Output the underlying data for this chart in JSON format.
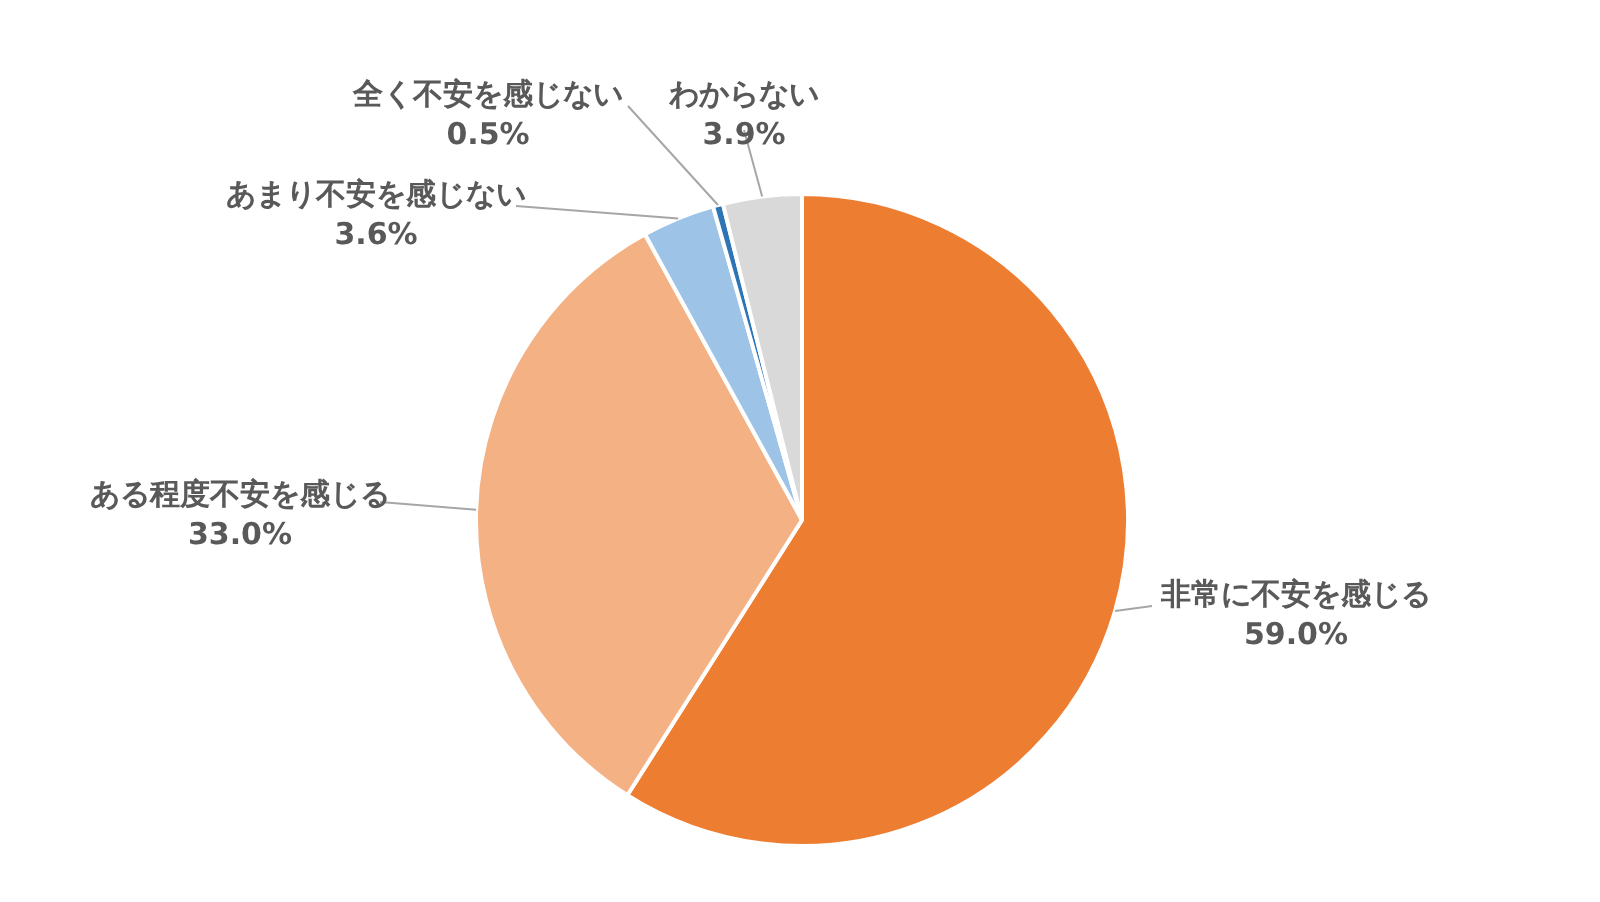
{
  "chart_data": {
    "type": "pie",
    "categories": [
      "非常に不安を感じる",
      "ある程度不安を感じる",
      "あまり不安を感じない",
      "全く不安を感じない",
      "わからない"
    ],
    "values": [
      59.0,
      33.0,
      3.6,
      0.5,
      3.9
    ],
    "colors": [
      "#ed7d31",
      "#f4b183",
      "#9dc3e6",
      "#2e75b6",
      "#d9d9d9"
    ],
    "value_labels": [
      "59.0%",
      "33.0%",
      "3.6%",
      "0.5%",
      "3.9%"
    ]
  }
}
